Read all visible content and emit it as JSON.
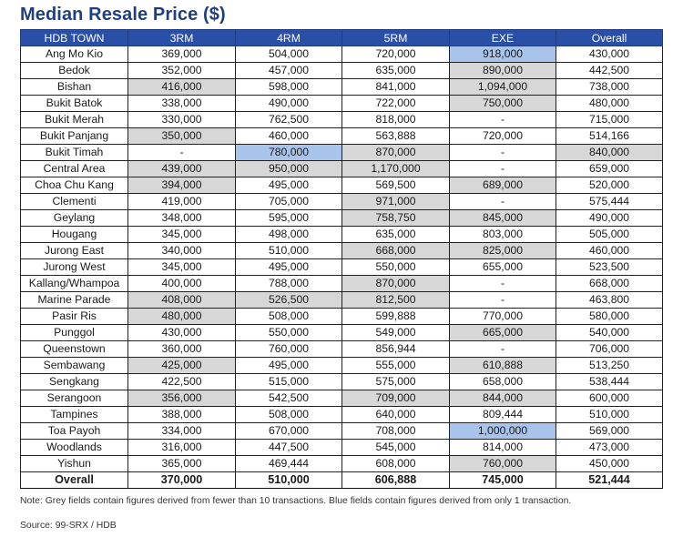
{
  "title": "Median Resale Price ($)",
  "colors": {
    "header_bg": "#2a4fa6",
    "title": "#1f3f7f",
    "grey_cell": "#d7d7d7",
    "blue_cell": "#a9c4ea"
  },
  "table": {
    "columns": [
      "HDB TOWN",
      "3RM",
      "4RM",
      "5RM",
      "EXE",
      "Overall"
    ],
    "rows": [
      {
        "town": "Ang Mo Kio",
        "values": [
          "369,000",
          "504,000",
          "720,000",
          "918,000",
          "430,000"
        ],
        "shade": [
          "",
          "",
          "",
          "b",
          ""
        ]
      },
      {
        "town": "Bedok",
        "values": [
          "352,000",
          "457,000",
          "635,000",
          "890,000",
          "442,500"
        ],
        "shade": [
          "",
          "",
          "",
          "g",
          ""
        ]
      },
      {
        "town": "Bishan",
        "values": [
          "416,000",
          "598,000",
          "841,000",
          "1,094,000",
          "738,000"
        ],
        "shade": [
          "g",
          "",
          "",
          "g",
          ""
        ]
      },
      {
        "town": "Bukit Batok",
        "values": [
          "338,000",
          "490,000",
          "722,000",
          "750,000",
          "480,000"
        ],
        "shade": [
          "",
          "",
          "",
          "g",
          ""
        ]
      },
      {
        "town": "Bukit Merah",
        "values": [
          "330,000",
          "762,500",
          "818,000",
          "-",
          "715,000"
        ],
        "shade": [
          "",
          "",
          "",
          "",
          ""
        ]
      },
      {
        "town": "Bukit Panjang",
        "values": [
          "350,000",
          "460,000",
          "563,888",
          "720,000",
          "514,166"
        ],
        "shade": [
          "g",
          "",
          "",
          "",
          ""
        ]
      },
      {
        "town": "Bukit Timah",
        "values": [
          "-",
          "780,000",
          "870,000",
          "-",
          "840,000"
        ],
        "shade": [
          "",
          "b",
          "g",
          "",
          "g"
        ]
      },
      {
        "town": "Central Area",
        "values": [
          "439,000",
          "950,000",
          "1,170,000",
          "-",
          "659,000"
        ],
        "shade": [
          "g",
          "g",
          "g",
          "",
          ""
        ]
      },
      {
        "town": "Choa Chu Kang",
        "values": [
          "394,000",
          "495,000",
          "569,500",
          "689,000",
          "520,000"
        ],
        "shade": [
          "g",
          "",
          "",
          "g",
          ""
        ]
      },
      {
        "town": "Clementi",
        "values": [
          "419,000",
          "705,000",
          "971,000",
          "-",
          "575,444"
        ],
        "shade": [
          "",
          "",
          "g",
          "",
          ""
        ]
      },
      {
        "town": "Geylang",
        "values": [
          "348,000",
          "595,000",
          "758,750",
          "845,000",
          "490,000"
        ],
        "shade": [
          "",
          "",
          "g",
          "g",
          ""
        ]
      },
      {
        "town": "Hougang",
        "values": [
          "345,000",
          "498,000",
          "635,000",
          "803,000",
          "505,000"
        ],
        "shade": [
          "",
          "",
          "",
          "",
          ""
        ]
      },
      {
        "town": "Jurong East",
        "values": [
          "340,000",
          "510,000",
          "668,000",
          "825,000",
          "460,000"
        ],
        "shade": [
          "",
          "",
          "g",
          "g",
          ""
        ]
      },
      {
        "town": "Jurong West",
        "values": [
          "345,000",
          "495,000",
          "550,000",
          "655,000",
          "523,500"
        ],
        "shade": [
          "",
          "",
          "",
          "",
          ""
        ]
      },
      {
        "town": "Kallang/Whampoa",
        "values": [
          "400,000",
          "788,000",
          "870,000",
          "-",
          "668,000"
        ],
        "shade": [
          "",
          "",
          "g",
          "",
          ""
        ]
      },
      {
        "town": "Marine Parade",
        "values": [
          "408,000",
          "526,500",
          "812,500",
          "-",
          "463,800"
        ],
        "shade": [
          "g",
          "g",
          "g",
          "",
          ""
        ]
      },
      {
        "town": "Pasir Ris",
        "values": [
          "480,000",
          "508,000",
          "599,888",
          "770,000",
          "580,000"
        ],
        "shade": [
          "g",
          "",
          "",
          "",
          ""
        ]
      },
      {
        "town": "Punggol",
        "values": [
          "430,000",
          "550,000",
          "549,000",
          "665,000",
          "540,000"
        ],
        "shade": [
          "",
          "",
          "",
          "g",
          ""
        ]
      },
      {
        "town": "Queenstown",
        "values": [
          "360,000",
          "760,000",
          "856,944",
          "-",
          "706,000"
        ],
        "shade": [
          "",
          "",
          "",
          "",
          ""
        ]
      },
      {
        "town": "Sembawang",
        "values": [
          "425,000",
          "495,000",
          "555,000",
          "610,888",
          "513,250"
        ],
        "shade": [
          "g",
          "",
          "",
          "g",
          ""
        ]
      },
      {
        "town": "Sengkang",
        "values": [
          "422,500",
          "515,000",
          "575,000",
          "658,000",
          "538,444"
        ],
        "shade": [
          "",
          "",
          "",
          "",
          ""
        ]
      },
      {
        "town": "Serangoon",
        "values": [
          "356,000",
          "542,500",
          "709,000",
          "844,000",
          "600,000"
        ],
        "shade": [
          "g",
          "",
          "g",
          "g",
          ""
        ]
      },
      {
        "town": "Tampines",
        "values": [
          "388,000",
          "508,000",
          "640,000",
          "809,444",
          "510,000"
        ],
        "shade": [
          "",
          "",
          "",
          "",
          ""
        ]
      },
      {
        "town": "Toa Payoh",
        "values": [
          "334,000",
          "670,000",
          "708,000",
          "1,000,000",
          "569,000"
        ],
        "shade": [
          "",
          "",
          "",
          "b",
          ""
        ]
      },
      {
        "town": "Woodlands",
        "values": [
          "316,000",
          "447,500",
          "545,000",
          "814,000",
          "473,000"
        ],
        "shade": [
          "",
          "",
          "",
          "",
          ""
        ]
      },
      {
        "town": "Yishun",
        "values": [
          "365,000",
          "469,444",
          "608,000",
          "760,000",
          "450,000"
        ],
        "shade": [
          "",
          "",
          "",
          "g",
          ""
        ]
      }
    ],
    "overall": {
      "town": "Overall",
      "values": [
        "370,000",
        "510,000",
        "606,888",
        "745,000",
        "521,444"
      ]
    }
  },
  "note": "Note: Grey fields contain figures derived from fewer than 10 transactions. Blue fields contain figures derived from only 1 transaction.",
  "source": "Source: 99-SRX / HDB"
}
